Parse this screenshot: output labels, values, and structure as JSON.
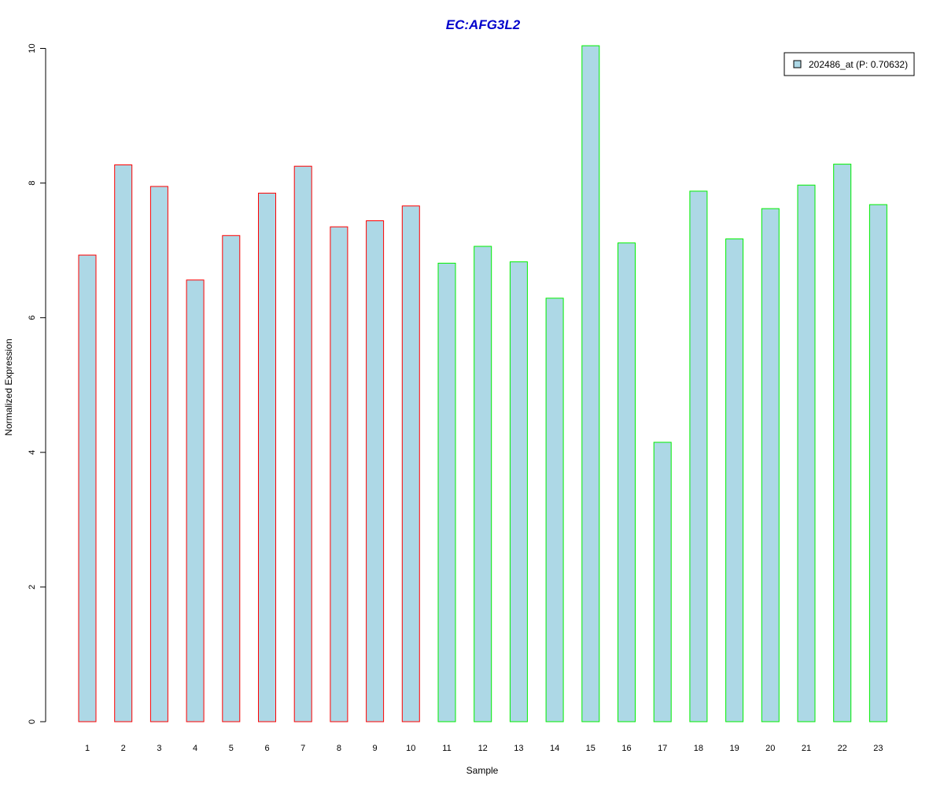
{
  "chart_data": {
    "type": "bar",
    "title": "EC:AFG3L2",
    "xlabel": "Sample",
    "ylabel": "Normalized Expression",
    "categories": [
      "1",
      "2",
      "3",
      "4",
      "5",
      "6",
      "7",
      "8",
      "9",
      "10",
      "11",
      "12",
      "13",
      "14",
      "15",
      "16",
      "17",
      "18",
      "19",
      "20",
      "21",
      "22",
      "23"
    ],
    "series": [
      {
        "name": "202486_at (P: 0.70632)",
        "values": [
          6.93,
          8.27,
          7.95,
          6.56,
          7.22,
          7.85,
          8.25,
          7.35,
          7.44,
          7.66,
          6.81,
          7.06,
          6.83,
          6.29,
          10.04,
          7.11,
          4.15,
          7.88,
          7.17,
          7.62,
          7.97,
          8.28,
          7.68
        ]
      }
    ],
    "groups": [
      {
        "samples": [
          1,
          2,
          3,
          4,
          5,
          6,
          7,
          8,
          9,
          10
        ],
        "border_color": "#ff0000"
      },
      {
        "samples": [
          11,
          12,
          13,
          14,
          15,
          16,
          17,
          18,
          19,
          20,
          21,
          22,
          23
        ],
        "border_color": "#00ee00"
      }
    ],
    "ylim": [
      0,
      10
    ],
    "yticks": [
      0,
      2,
      4,
      6,
      8,
      10
    ],
    "grid": false,
    "legend_position": "top-right",
    "colors": {
      "bar_fill": "#add8e6",
      "title": "#0000cc",
      "axis": "#000000"
    }
  }
}
